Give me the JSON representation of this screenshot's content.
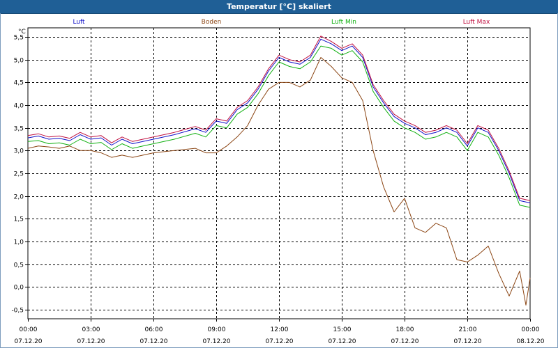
{
  "window": {
    "title": "Temperatur [°C] skaliert"
  },
  "colors": {
    "luft": "#1010c8",
    "boden": "#8b4513",
    "luft_min": "#10b010",
    "luft_max": "#c01040",
    "grid": "#000000"
  },
  "chart_data": {
    "type": "line",
    "title": "Temperatur [°C] skaliert",
    "ylabel": "°C",
    "ylim": [
      -0.7,
      5.7
    ],
    "xlim": [
      "07.12.20 00:00",
      "08.12.20 00:00"
    ],
    "grid": true,
    "legend_position": "top",
    "y_ticks": [
      "5,5",
      "5,0",
      "4,5",
      "4,0",
      "3,5",
      "3,0",
      "2,5",
      "2,0",
      "1,5",
      "1,0",
      "0,5",
      "0,0",
      "-0,5"
    ],
    "y_tick_values": [
      5.5,
      5.0,
      4.5,
      4.0,
      3.5,
      3.0,
      2.5,
      2.0,
      1.5,
      1.0,
      0.5,
      0.0,
      -0.5
    ],
    "x_ticks": [
      {
        "time": "00:00",
        "date": "07.12.20",
        "hour": 0
      },
      {
        "time": "03:00",
        "date": "07.12.20",
        "hour": 3
      },
      {
        "time": "06:00",
        "date": "07.12.20",
        "hour": 6
      },
      {
        "time": "09:00",
        "date": "07.12.20",
        "hour": 9
      },
      {
        "time": "12:00",
        "date": "07.12.20",
        "hour": 12
      },
      {
        "time": "15:00",
        "date": "07.12.20",
        "hour": 15
      },
      {
        "time": "18:00",
        "date": "07.12.20",
        "hour": 18
      },
      {
        "time": "21:00",
        "date": "07.12.20",
        "hour": 21
      },
      {
        "time": "00:00",
        "date": "08.12.20",
        "hour": 24
      }
    ],
    "series": [
      {
        "name": "Luft",
        "color": "#1010c8",
        "points": [
          [
            0,
            3.28
          ],
          [
            0.5,
            3.32
          ],
          [
            1,
            3.25
          ],
          [
            1.5,
            3.27
          ],
          [
            2,
            3.22
          ],
          [
            2.5,
            3.35
          ],
          [
            3,
            3.25
          ],
          [
            3.5,
            3.28
          ],
          [
            4,
            3.12
          ],
          [
            4.5,
            3.25
          ],
          [
            5,
            3.15
          ],
          [
            5.5,
            3.2
          ],
          [
            6,
            3.25
          ],
          [
            7,
            3.35
          ],
          [
            8,
            3.48
          ],
          [
            8.5,
            3.4
          ],
          [
            9,
            3.65
          ],
          [
            9.5,
            3.6
          ],
          [
            10,
            3.9
          ],
          [
            10.5,
            4.05
          ],
          [
            11,
            4.35
          ],
          [
            11.5,
            4.75
          ],
          [
            12,
            5.05
          ],
          [
            12.5,
            4.95
          ],
          [
            13,
            4.9
          ],
          [
            13.5,
            5.05
          ],
          [
            14,
            5.45
          ],
          [
            14.5,
            5.35
          ],
          [
            15,
            5.2
          ],
          [
            15.5,
            5.3
          ],
          [
            16,
            5.05
          ],
          [
            16.5,
            4.4
          ],
          [
            17,
            4.05
          ],
          [
            17.5,
            3.75
          ],
          [
            18,
            3.6
          ],
          [
            18.5,
            3.5
          ],
          [
            19,
            3.35
          ],
          [
            19.5,
            3.4
          ],
          [
            20,
            3.5
          ],
          [
            20.5,
            3.4
          ],
          [
            21,
            3.1
          ],
          [
            21.5,
            3.5
          ],
          [
            22,
            3.4
          ],
          [
            22.5,
            3.0
          ],
          [
            23,
            2.5
          ],
          [
            23.5,
            1.9
          ],
          [
            24,
            1.85
          ]
        ]
      },
      {
        "name": "Boden",
        "color": "#8b4513",
        "points": [
          [
            0,
            3.05
          ],
          [
            0.5,
            3.1
          ],
          [
            1,
            3.08
          ],
          [
            1.5,
            3.05
          ],
          [
            2,
            3.1
          ],
          [
            2.5,
            3.0
          ],
          [
            3,
            3.0
          ],
          [
            3.5,
            2.95
          ],
          [
            4,
            2.85
          ],
          [
            4.5,
            2.9
          ],
          [
            5,
            2.85
          ],
          [
            5.5,
            2.9
          ],
          [
            6,
            2.95
          ],
          [
            7,
            3.0
          ],
          [
            8,
            3.05
          ],
          [
            8.5,
            2.95
          ],
          [
            9,
            2.95
          ],
          [
            9.5,
            3.1
          ],
          [
            10,
            3.3
          ],
          [
            10.5,
            3.55
          ],
          [
            11,
            4.0
          ],
          [
            11.5,
            4.35
          ],
          [
            12,
            4.5
          ],
          [
            12.5,
            4.5
          ],
          [
            13,
            4.4
          ],
          [
            13.5,
            4.55
          ],
          [
            14,
            5.05
          ],
          [
            14.5,
            4.85
          ],
          [
            15,
            4.6
          ],
          [
            15.5,
            4.5
          ],
          [
            16,
            4.1
          ],
          [
            16.5,
            3.0
          ],
          [
            17,
            2.2
          ],
          [
            17.5,
            1.65
          ],
          [
            18,
            1.95
          ],
          [
            18.5,
            1.3
          ],
          [
            19,
            1.2
          ],
          [
            19.5,
            1.4
          ],
          [
            20,
            1.3
          ],
          [
            20.5,
            0.6
          ],
          [
            21,
            0.55
          ],
          [
            21.5,
            0.7
          ],
          [
            22,
            0.9
          ],
          [
            22.5,
            0.3
          ],
          [
            23,
            -0.2
          ],
          [
            23.5,
            0.35
          ],
          [
            23.8,
            -0.4
          ],
          [
            24,
            0.2
          ]
        ]
      },
      {
        "name": "Luft Min",
        "color": "#10b010",
        "points": [
          [
            0,
            3.2
          ],
          [
            0.5,
            3.22
          ],
          [
            1,
            3.15
          ],
          [
            1.5,
            3.17
          ],
          [
            2,
            3.12
          ],
          [
            2.5,
            3.25
          ],
          [
            3,
            3.15
          ],
          [
            3.5,
            3.18
          ],
          [
            4,
            3.02
          ],
          [
            4.5,
            3.15
          ],
          [
            5,
            3.05
          ],
          [
            5.5,
            3.1
          ],
          [
            6,
            3.15
          ],
          [
            7,
            3.25
          ],
          [
            8,
            3.38
          ],
          [
            8.5,
            3.3
          ],
          [
            9,
            3.55
          ],
          [
            9.5,
            3.5
          ],
          [
            10,
            3.8
          ],
          [
            10.5,
            3.95
          ],
          [
            11,
            4.25
          ],
          [
            11.5,
            4.65
          ],
          [
            12,
            4.95
          ],
          [
            12.5,
            4.85
          ],
          [
            13,
            4.8
          ],
          [
            13.5,
            4.95
          ],
          [
            14,
            5.3
          ],
          [
            14.5,
            5.25
          ],
          [
            15,
            5.1
          ],
          [
            15.5,
            5.2
          ],
          [
            16,
            4.95
          ],
          [
            16.5,
            4.3
          ],
          [
            17,
            3.95
          ],
          [
            17.5,
            3.65
          ],
          [
            18,
            3.5
          ],
          [
            18.5,
            3.4
          ],
          [
            19,
            3.25
          ],
          [
            19.5,
            3.3
          ],
          [
            20,
            3.4
          ],
          [
            20.5,
            3.3
          ],
          [
            21,
            3.0
          ],
          [
            21.5,
            3.4
          ],
          [
            22,
            3.3
          ],
          [
            22.5,
            2.9
          ],
          [
            23,
            2.4
          ],
          [
            23.5,
            1.8
          ],
          [
            24,
            1.75
          ]
        ]
      },
      {
        "name": "Luft Max",
        "color": "#c01040",
        "points": [
          [
            0,
            3.33
          ],
          [
            0.5,
            3.37
          ],
          [
            1,
            3.3
          ],
          [
            1.5,
            3.32
          ],
          [
            2,
            3.27
          ],
          [
            2.5,
            3.4
          ],
          [
            3,
            3.3
          ],
          [
            3.5,
            3.33
          ],
          [
            4,
            3.17
          ],
          [
            4.5,
            3.3
          ],
          [
            5,
            3.2
          ],
          [
            5.5,
            3.25
          ],
          [
            6,
            3.3
          ],
          [
            7,
            3.4
          ],
          [
            8,
            3.53
          ],
          [
            8.5,
            3.45
          ],
          [
            9,
            3.7
          ],
          [
            9.5,
            3.65
          ],
          [
            10,
            3.95
          ],
          [
            10.5,
            4.1
          ],
          [
            11,
            4.4
          ],
          [
            11.5,
            4.8
          ],
          [
            12,
            5.1
          ],
          [
            12.5,
            5.0
          ],
          [
            13,
            4.95
          ],
          [
            13.5,
            5.1
          ],
          [
            14,
            5.52
          ],
          [
            14.5,
            5.4
          ],
          [
            15,
            5.25
          ],
          [
            15.5,
            5.35
          ],
          [
            16,
            5.1
          ],
          [
            16.5,
            4.45
          ],
          [
            17,
            4.1
          ],
          [
            17.5,
            3.8
          ],
          [
            18,
            3.65
          ],
          [
            18.5,
            3.55
          ],
          [
            19,
            3.4
          ],
          [
            19.5,
            3.45
          ],
          [
            20,
            3.55
          ],
          [
            20.5,
            3.45
          ],
          [
            21,
            3.15
          ],
          [
            21.5,
            3.55
          ],
          [
            22,
            3.45
          ],
          [
            22.5,
            3.05
          ],
          [
            23,
            2.55
          ],
          [
            23.5,
            1.95
          ],
          [
            24,
            1.9
          ]
        ]
      }
    ]
  }
}
